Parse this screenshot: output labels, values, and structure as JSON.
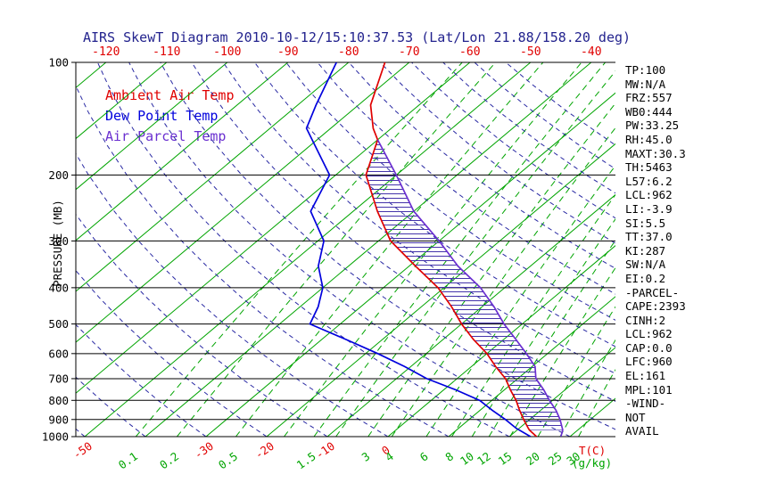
{
  "title": "AIRS SkewT Diagram 2010-10-12/15:10:37.53 (Lat/Lon 21.88/158.20 deg)",
  "colors": {
    "title": "#23238e",
    "temp": "#e00000",
    "dew": "#0000dd",
    "parcel": "#6a2fd0",
    "isotherm": "#00a400",
    "mixratio": "#00a400",
    "adiabat": "#2929a3",
    "hatch": "#4433aa",
    "axis": "#000000"
  },
  "legend": [
    {
      "label": "Ambient Air Temp",
      "color": "#e00000"
    },
    {
      "label": "Dew Point Temp",
      "color": "#0000dd"
    },
    {
      "label": "Air Parcel Temp",
      "color": "#6a2fd0"
    }
  ],
  "axes": {
    "y_label": "PRESSURE (MB)",
    "pressure_ticks": [
      100,
      200,
      300,
      400,
      500,
      600,
      700,
      800,
      900,
      1000
    ],
    "top_temp_ticks": [
      -120,
      -110,
      -100,
      -90,
      -80,
      -70,
      -60,
      -50,
      -40
    ],
    "bottom_temp_ticks": [
      -50,
      -30,
      -20,
      -10,
      0
    ],
    "bottom_temp_unit": "T(C)",
    "mixing_ratio_ticks": [
      0.1,
      0.2,
      0.5,
      1.5,
      3,
      4,
      6,
      8,
      10,
      12,
      15,
      20,
      25,
      30
    ],
    "mixing_ratio_unit": "(g/kg)"
  },
  "side_panel": {
    "lines": [
      "TP:100",
      "MW:N/A",
      "FRZ:557",
      "WB0:444",
      "PW:33.25",
      "RH:45.0",
      "MAXT:30.3",
      "TH:5463",
      "L57:6.2",
      "LCL:962",
      "LI:-3.9",
      "SI:5.5",
      "TT:37.0",
      "KI:287",
      "SW:N/A",
      "EI:0.2",
      "-PARCEL-",
      "CAPE:2393",
      "CINH:2",
      "LCL:962",
      "CAP:0.0",
      "LFC:960",
      "EL:161",
      "MPL:101",
      "-WIND-",
      "NOT",
      "AVAIL"
    ]
  },
  "chart_data": {
    "type": "line",
    "subtype": "skewt-log-p",
    "title": "AIRS SkewT Diagram 2010-10-12/15:10:37.53 (Lat/Lon 21.88/158.20 deg)",
    "xlabel": "T(C)",
    "ylabel": "PRESSURE (MB)",
    "y_scale": "log",
    "ylim": [
      100,
      1000
    ],
    "top_axis_ticks_c": [
      -120,
      -110,
      -100,
      -90,
      -80,
      -70,
      -60,
      -50,
      -40
    ],
    "isotherms_c": {
      "min": -120,
      "max": 30,
      "step": 10
    },
    "dry_adiabats_c": {
      "min": -60,
      "max": 150,
      "step": 10
    },
    "mixing_ratio_lines_gkg": [
      0.1,
      0.2,
      0.5,
      1,
      1.5,
      2,
      3,
      4,
      6,
      8,
      10,
      12,
      15,
      20,
      25,
      30
    ],
    "grid": true,
    "legend_position": "top-left",
    "series": [
      {
        "name": "Ambient Air Temp",
        "color": "#e00000",
        "points_p_c": [
          [
            100,
            -74
          ],
          [
            130,
            -68
          ],
          [
            150,
            -63
          ],
          [
            161,
            -60
          ],
          [
            200,
            -55
          ],
          [
            250,
            -46
          ],
          [
            300,
            -38
          ],
          [
            350,
            -29
          ],
          [
            400,
            -21
          ],
          [
            450,
            -15
          ],
          [
            500,
            -10
          ],
          [
            550,
            -5
          ],
          [
            600,
            0
          ],
          [
            650,
            4
          ],
          [
            700,
            8
          ],
          [
            750,
            11
          ],
          [
            800,
            14
          ],
          [
            850,
            16.5
          ],
          [
            900,
            19
          ],
          [
            950,
            21.5
          ],
          [
            960,
            22
          ],
          [
            1000,
            24.5
          ]
        ]
      },
      {
        "name": "Dew Point Temp",
        "color": "#0000dd",
        "points_p_c": [
          [
            100,
            -82
          ],
          [
            130,
            -77
          ],
          [
            150,
            -74
          ],
          [
            200,
            -61
          ],
          [
            250,
            -57
          ],
          [
            300,
            -49
          ],
          [
            350,
            -45
          ],
          [
            400,
            -40
          ],
          [
            450,
            -37
          ],
          [
            500,
            -35
          ],
          [
            550,
            -26
          ],
          [
            600,
            -18
          ],
          [
            650,
            -11
          ],
          [
            700,
            -5
          ],
          [
            750,
            2
          ],
          [
            800,
            8
          ],
          [
            850,
            12
          ],
          [
            900,
            16
          ],
          [
            950,
            19.5
          ],
          [
            1000,
            23.5
          ]
        ]
      },
      {
        "name": "Air Parcel Temp",
        "color": "#6a2fd0",
        "points_p_c": [
          [
            161,
            -60
          ],
          [
            200,
            -50
          ],
          [
            250,
            -40
          ],
          [
            300,
            -30
          ],
          [
            350,
            -22
          ],
          [
            400,
            -14
          ],
          [
            450,
            -8
          ],
          [
            500,
            -3
          ],
          [
            550,
            2
          ],
          [
            600,
            6.5
          ],
          [
            650,
            10.5
          ],
          [
            700,
            13
          ],
          [
            750,
            16.5
          ],
          [
            800,
            19.5
          ],
          [
            850,
            22.5
          ],
          [
            900,
            25
          ],
          [
            960,
            27.5
          ],
          [
            1000,
            28.5
          ]
        ]
      }
    ],
    "cape_region": {
      "between": [
        "Air Parcel Temp",
        "Ambient Air Temp"
      ],
      "pressure_top": 161,
      "pressure_bottom": 960,
      "cape_value": 2393
    }
  }
}
